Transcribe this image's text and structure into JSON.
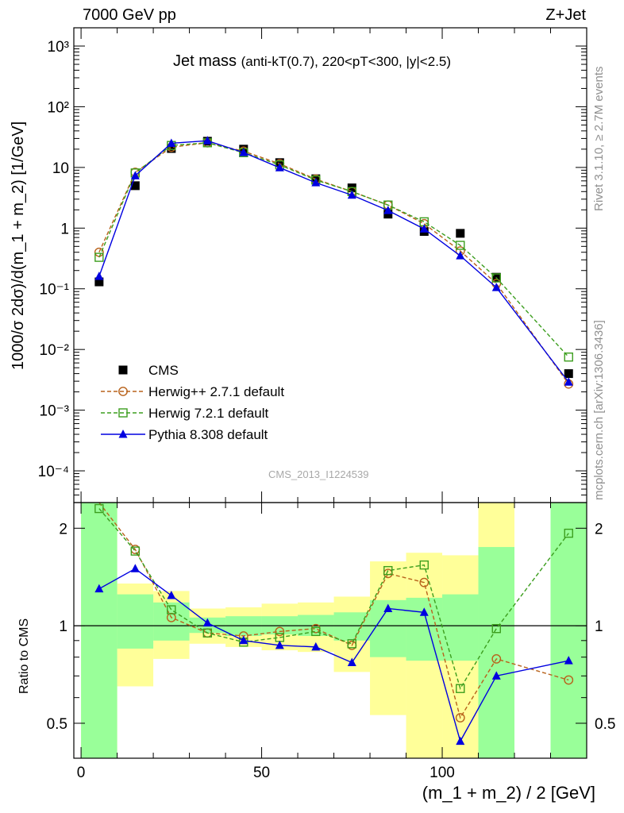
{
  "header": {
    "left": "7000 GeV pp",
    "right": "Z+Jet"
  },
  "side": {
    "rivet": "Rivet 3.1.10, ≥ 2.7M events",
    "mcplots": "mcplots.cern.ch [arXiv:1306.3436]"
  },
  "title": {
    "main": "Jet mass",
    "details": "(anti-kT(0.7), 220<pT<300, |y|<2.5)"
  },
  "watermark": "CMS_2013_I1224539",
  "colors": {
    "cms": "#000000",
    "herwigpp": "#b8621b",
    "herwig7": "#3c9e1e",
    "pythia": "#0000e0",
    "band_inner": "#99ff99",
    "band_outer": "#ffff99"
  },
  "chart_data": [
    {
      "type": "scatter",
      "panel": "main",
      "xlabel": "",
      "ylabel": "1000/σ 2dσ)/d(m_1 + m_2) [1/GeV]",
      "yscale": "log",
      "xlim": [
        -2,
        140
      ],
      "ylim": [
        3e-05,
        2000
      ],
      "yticks": [
        "10⁻⁴",
        "10⁻³",
        "10⁻²",
        "10⁻¹",
        "1",
        "10",
        "10²",
        "10³"
      ],
      "legend": "left, lower half",
      "x": [
        5,
        15,
        25,
        35,
        45,
        55,
        65,
        75,
        85,
        95,
        105,
        115,
        135
      ],
      "series": [
        {
          "name": "CMS",
          "marker": "square",
          "line": "none",
          "values": [
            0.13,
            5.0,
            20.5,
            27.0,
            20.0,
            12.0,
            6.5,
            4.6,
            1.7,
            0.88,
            0.82,
            0.155,
            0.004
          ]
        },
        {
          "name": "Herwig++ 2.7.1 default",
          "marker": "circle",
          "line": "dashed",
          "values": [
            0.4,
            8.3,
            21.5,
            25.5,
            18.5,
            11.5,
            6.4,
            4.0,
            2.4,
            1.18,
            0.42,
            0.122,
            0.0027
          ]
        },
        {
          "name": "Herwig 7.2.1 default",
          "marker": "open-square",
          "line": "dashed",
          "values": [
            0.33,
            8.1,
            23.0,
            25.5,
            17.5,
            11.0,
            6.2,
            4.0,
            2.4,
            1.27,
            0.52,
            0.151,
            0.0075
          ]
        },
        {
          "name": "Pythia 8.308 default",
          "marker": "triangle",
          "line": "solid",
          "values": [
            0.16,
            7.3,
            25.0,
            27.5,
            17.6,
            9.9,
            5.6,
            3.5,
            1.95,
            0.97,
            0.35,
            0.105,
            0.0029
          ]
        }
      ]
    },
    {
      "type": "line",
      "panel": "ratio",
      "xlabel": "(m_1 + m_2) / 2 [GeV]",
      "ylabel": "Ratio to CMS",
      "xlim": [
        -2,
        140
      ],
      "ylim": [
        0.39,
        2.4
      ],
      "ylog": true,
      "xticks": [
        "0",
        "50",
        "100"
      ],
      "yticks": [
        "0.5",
        "1",
        "2"
      ],
      "x": [
        5,
        15,
        25,
        35,
        45,
        55,
        65,
        75,
        85,
        95,
        105,
        115,
        135
      ],
      "bands": {
        "edges": [
          0,
          10,
          20,
          30,
          40,
          50,
          60,
          70,
          80,
          90,
          100,
          110,
          120,
          130,
          140
        ],
        "inner": [
          [
            0.39,
            2.4
          ],
          [
            0.85,
            1.25
          ],
          [
            0.9,
            1.18
          ],
          [
            0.95,
            1.06
          ],
          [
            0.93,
            1.07
          ],
          [
            0.94,
            1.07
          ],
          [
            0.93,
            1.08
          ],
          [
            0.9,
            1.1
          ],
          [
            0.8,
            1.2
          ],
          [
            0.78,
            1.22
          ],
          [
            0.78,
            1.25
          ],
          [
            0.39,
            1.75
          ],
          null,
          [
            0.39,
            2.4
          ]
        ],
        "outer": [
          [
            0.39,
            2.4
          ],
          [
            0.65,
            1.35
          ],
          [
            0.79,
            1.28
          ],
          [
            0.88,
            1.13
          ],
          [
            0.86,
            1.14
          ],
          [
            0.84,
            1.17
          ],
          [
            0.83,
            1.18
          ],
          [
            0.72,
            1.23
          ],
          [
            0.53,
            1.58
          ],
          [
            0.39,
            1.68
          ],
          [
            0.39,
            1.65
          ],
          [
            0.39,
            2.4
          ],
          null,
          [
            0.39,
            2.4
          ]
        ]
      },
      "series": [
        {
          "name": "Herwig++ 2.7.1 default",
          "values": [
            2.45,
            1.72,
            1.06,
            0.95,
            0.93,
            0.96,
            0.98,
            0.87,
            1.45,
            1.36,
            0.52,
            0.79,
            0.68
          ]
        },
        {
          "name": "Herwig 7.2.1 default",
          "values": [
            2.3,
            1.7,
            1.12,
            0.95,
            0.89,
            0.92,
            0.96,
            0.88,
            1.48,
            1.54,
            0.64,
            0.98,
            1.93
          ]
        },
        {
          "name": "Pythia 8.308 default",
          "values": [
            1.3,
            1.5,
            1.24,
            1.02,
            0.9,
            0.87,
            0.86,
            0.77,
            1.13,
            1.1,
            0.44,
            0.7,
            0.78
          ]
        }
      ]
    }
  ]
}
